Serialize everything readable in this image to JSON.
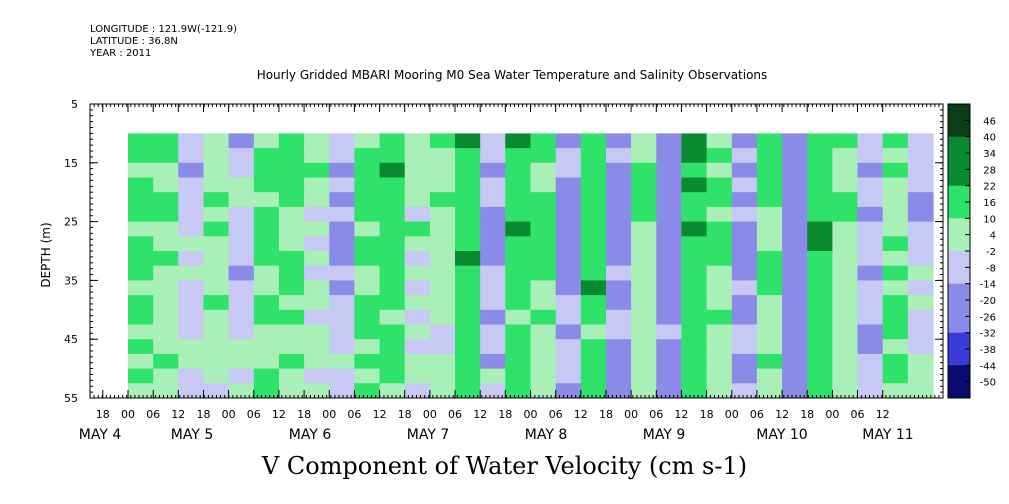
{
  "header": {
    "longitude": "LONGITUDE : 121.9W(-121.9)",
    "latitude": "LATITUDE : 36.8N",
    "year": "YEAR : 2011"
  },
  "chart_data": {
    "type": "heatmap",
    "title": "Hourly Gridded MBARI Mooring M0 Sea Water Temperature and Salinity Observations",
    "xlabel": "",
    "ylabel": "DEPTH (m)",
    "caption": "V Component of Water Velocity (cm s-1)",
    "ylim": [
      55,
      5
    ],
    "data_depth_range": [
      10,
      55
    ],
    "y_ticks": [
      5,
      15,
      25,
      35,
      45,
      55
    ],
    "hour_tick_labels": [
      "18",
      "00",
      "06",
      "12",
      "18",
      "00",
      "06",
      "12",
      "18",
      "00",
      "06",
      "12",
      "18",
      "00",
      "06",
      "12",
      "18",
      "00",
      "06",
      "12",
      "18",
      "00",
      "06",
      "12",
      "18",
      "00",
      "06",
      "12",
      "18",
      "00",
      "06",
      "12"
    ],
    "day_labels": [
      "MAY  4",
      "MAY  5",
      "MAY  6",
      "MAY  7",
      "MAY  8",
      "MAY  9",
      "MAY 10",
      "MAY 11"
    ],
    "colorbar_labels": [
      "46",
      "40",
      "34",
      "28",
      "22",
      "16",
      "10",
      "4",
      "-2",
      "-8",
      "-14",
      "-20",
      "-26",
      "-32",
      "-38",
      "-44",
      "-50"
    ],
    "colors": {
      "positive_low": "#a8f0b8",
      "positive_mid": "#2ee26a",
      "positive_high": "#0a8a30",
      "positive_max": "#0a3d18",
      "negative_low": "#c8c8f5",
      "negative_mid": "#8a8ae8",
      "negative_high": "#3a3ad8",
      "negative_max": "#0a0a70"
    },
    "columns": [
      {
        "day": "May 4 00",
        "v": 12
      },
      {
        "day": "May 4 06",
        "v": 8
      },
      {
        "day": "May 4 12",
        "v": -3
      },
      {
        "day": "May 4 18",
        "v": 6
      },
      {
        "day": "May 5 00",
        "v": -4
      },
      {
        "day": "May 5 06",
        "v": 10
      },
      {
        "day": "May 5 12",
        "v": 14
      },
      {
        "day": "May 5 18",
        "v": 4
      },
      {
        "day": "May 6 00",
        "v": -6
      },
      {
        "day": "May 6 06",
        "v": 9
      },
      {
        "day": "May 6 12",
        "v": 16
      },
      {
        "day": "May 6 18",
        "v": 3
      },
      {
        "day": "May 7 00",
        "v": 7
      },
      {
        "day": "May 7 06",
        "v": 18
      },
      {
        "day": "May 7 12",
        "v": -8
      },
      {
        "day": "May 7 18",
        "v": 15
      },
      {
        "day": "May 8 00",
        "v": 11
      },
      {
        "day": "May 8 06",
        "v": -10
      },
      {
        "day": "May 8 12",
        "v": 17
      },
      {
        "day": "May 8 18",
        "v": -12
      },
      {
        "day": "May 9 00",
        "v": 8
      },
      {
        "day": "May 9 06",
        "v": -14
      },
      {
        "day": "May 9 12",
        "v": 19
      },
      {
        "day": "May 9 18",
        "v": 6
      },
      {
        "day": "May 10 00",
        "v": -9
      },
      {
        "day": "May 10 06",
        "v": 14
      },
      {
        "day": "May 10 12",
        "v": -18
      },
      {
        "day": "May 10 18",
        "v": 16
      },
      {
        "day": "May 11 00",
        "v": 5
      },
      {
        "day": "May 11 06",
        "v": -7
      },
      {
        "day": "May 11 12",
        "v": 12
      },
      {
        "day": "May 11 18",
        "v": -4
      }
    ]
  }
}
